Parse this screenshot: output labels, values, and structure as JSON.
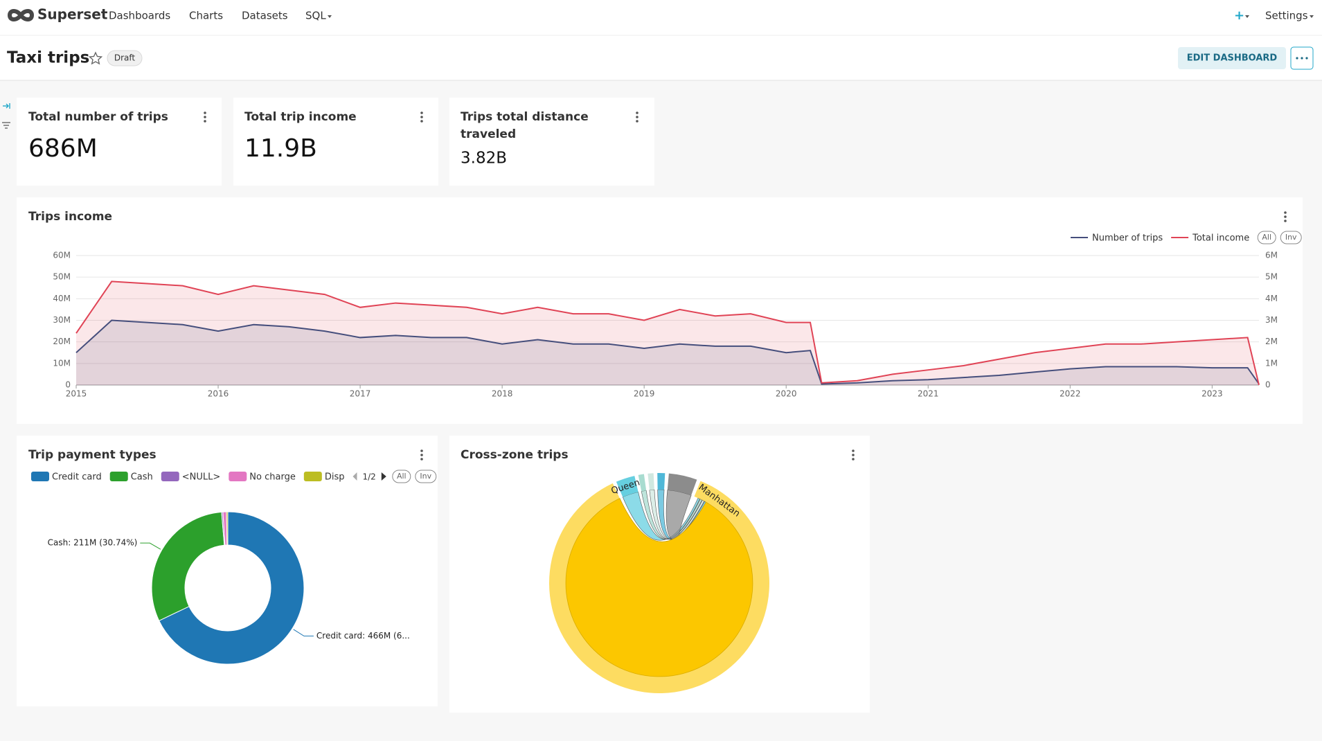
{
  "nav": {
    "brand": "Superset",
    "items": [
      "Dashboards",
      "Charts",
      "Datasets",
      "SQL"
    ],
    "plus": "+",
    "settings": "Settings"
  },
  "dashboard": {
    "title": "Taxi trips",
    "status": "Draft",
    "edit_button": "EDIT DASHBOARD"
  },
  "chart_data": [
    {
      "type": "big_number",
      "title": "Total number of trips",
      "value": 686000000,
      "value_label": "686M"
    },
    {
      "type": "big_number",
      "title": "Total trip income",
      "value": 11900000000,
      "value_label": "11.9B"
    },
    {
      "type": "big_number",
      "title": "Trips total distance traveled",
      "value": 3820000000,
      "value_label": "3.82B"
    },
    {
      "type": "line",
      "title": "Trips income",
      "area": true,
      "grid": true,
      "legend_buttons": [
        "All",
        "Inv"
      ],
      "x": [
        2015,
        2015.25,
        2015.5,
        2015.75,
        2016,
        2016.25,
        2016.5,
        2016.75,
        2017,
        2017.25,
        2017.5,
        2017.75,
        2018,
        2018.25,
        2018.5,
        2018.75,
        2019,
        2019.25,
        2019.5,
        2019.75,
        2020,
        2020.17,
        2020.25,
        2020.5,
        2020.75,
        2021,
        2021.25,
        2021.5,
        2021.75,
        2022,
        2022.25,
        2022.5,
        2022.75,
        2023,
        2023.25,
        2023.33
      ],
      "series": [
        {
          "name": "Number of trips",
          "color": "#454e7c",
          "axis": "y2",
          "values": [
            1500000,
            3000000,
            2900000,
            2800000,
            2500000,
            2800000,
            2700000,
            2500000,
            2200000,
            2300000,
            2200000,
            2200000,
            1900000,
            2100000,
            1900000,
            1900000,
            1700000,
            1900000,
            1800000,
            1800000,
            1500000,
            1600000,
            50000,
            100000,
            200000,
            250000,
            350000,
            450000,
            600000,
            750000,
            850000,
            850000,
            850000,
            800000,
            800000,
            50000
          ]
        },
        {
          "name": "Total income",
          "color": "#e04355",
          "values": [
            24000000,
            48000000,
            47000000,
            46000000,
            42000000,
            46000000,
            44000000,
            42000000,
            36000000,
            38000000,
            37000000,
            36000000,
            33000000,
            36000000,
            33000000,
            33000000,
            30000000,
            35000000,
            32000000,
            33000000,
            29000000,
            29000000,
            1000000,
            2000000,
            5000000,
            7000000,
            9000000,
            12000000,
            15000000,
            17000000,
            19000000,
            19000000,
            20000000,
            21000000,
            22000000,
            0
          ]
        }
      ],
      "xlim": [
        2015,
        2023.33
      ],
      "xticks": [
        2015,
        2016,
        2017,
        2018,
        2019,
        2020,
        2021,
        2022,
        2023
      ],
      "ylim": [
        0,
        60000000
      ],
      "yticks": [
        0,
        {
          "value": 10000000,
          "label": "10M"
        },
        {
          "value": 20000000,
          "label": "20M"
        },
        {
          "value": 30000000,
          "label": "30M"
        },
        {
          "value": 40000000,
          "label": "40M"
        },
        {
          "value": 50000000,
          "label": "50M"
        },
        {
          "value": 60000000,
          "label": "60M"
        }
      ],
      "y2lim": [
        0,
        6000000
      ],
      "y2ticks": [
        0,
        {
          "value": 1000000,
          "label": "1M"
        },
        {
          "value": 2000000,
          "label": "2M"
        },
        {
          "value": 3000000,
          "label": "3M"
        },
        {
          "value": 4000000,
          "label": "4M"
        },
        {
          "value": 5000000,
          "label": "5M"
        },
        {
          "value": 6000000,
          "label": "6M"
        }
      ]
    },
    {
      "type": "pie",
      "title": "Trip payment types",
      "donut": true,
      "categories": [
        "Credit card",
        "Cash",
        "<NULL>",
        "No charge",
        "Disp"
      ],
      "values": [
        466000000,
        211000000,
        2000000,
        5000000,
        2000000
      ],
      "colors": [
        "#1f77b4",
        "#2ca02c",
        "#9467bd",
        "#e377c2",
        "#bcbd22"
      ],
      "value_labels": [
        "Credit card: 466M (6...",
        "Cash: 211M (30.74%)",
        null,
        null,
        null
      ],
      "legend_page": "1/2",
      "legend_buttons": [
        "All",
        "Inv"
      ]
    },
    {
      "type": "chord",
      "title": "Cross-zone trips",
      "categories": [
        "Manhattan",
        "Queens",
        null,
        null,
        null,
        null
      ],
      "values": [
        313,
        10,
        3,
        3,
        4,
        15
      ],
      "colors": [
        "#fcc700",
        "#66cfe0",
        "#a8dcd0",
        "#d0e8e0",
        "#4fb8d8",
        "#8c8c8c"
      ]
    }
  ]
}
